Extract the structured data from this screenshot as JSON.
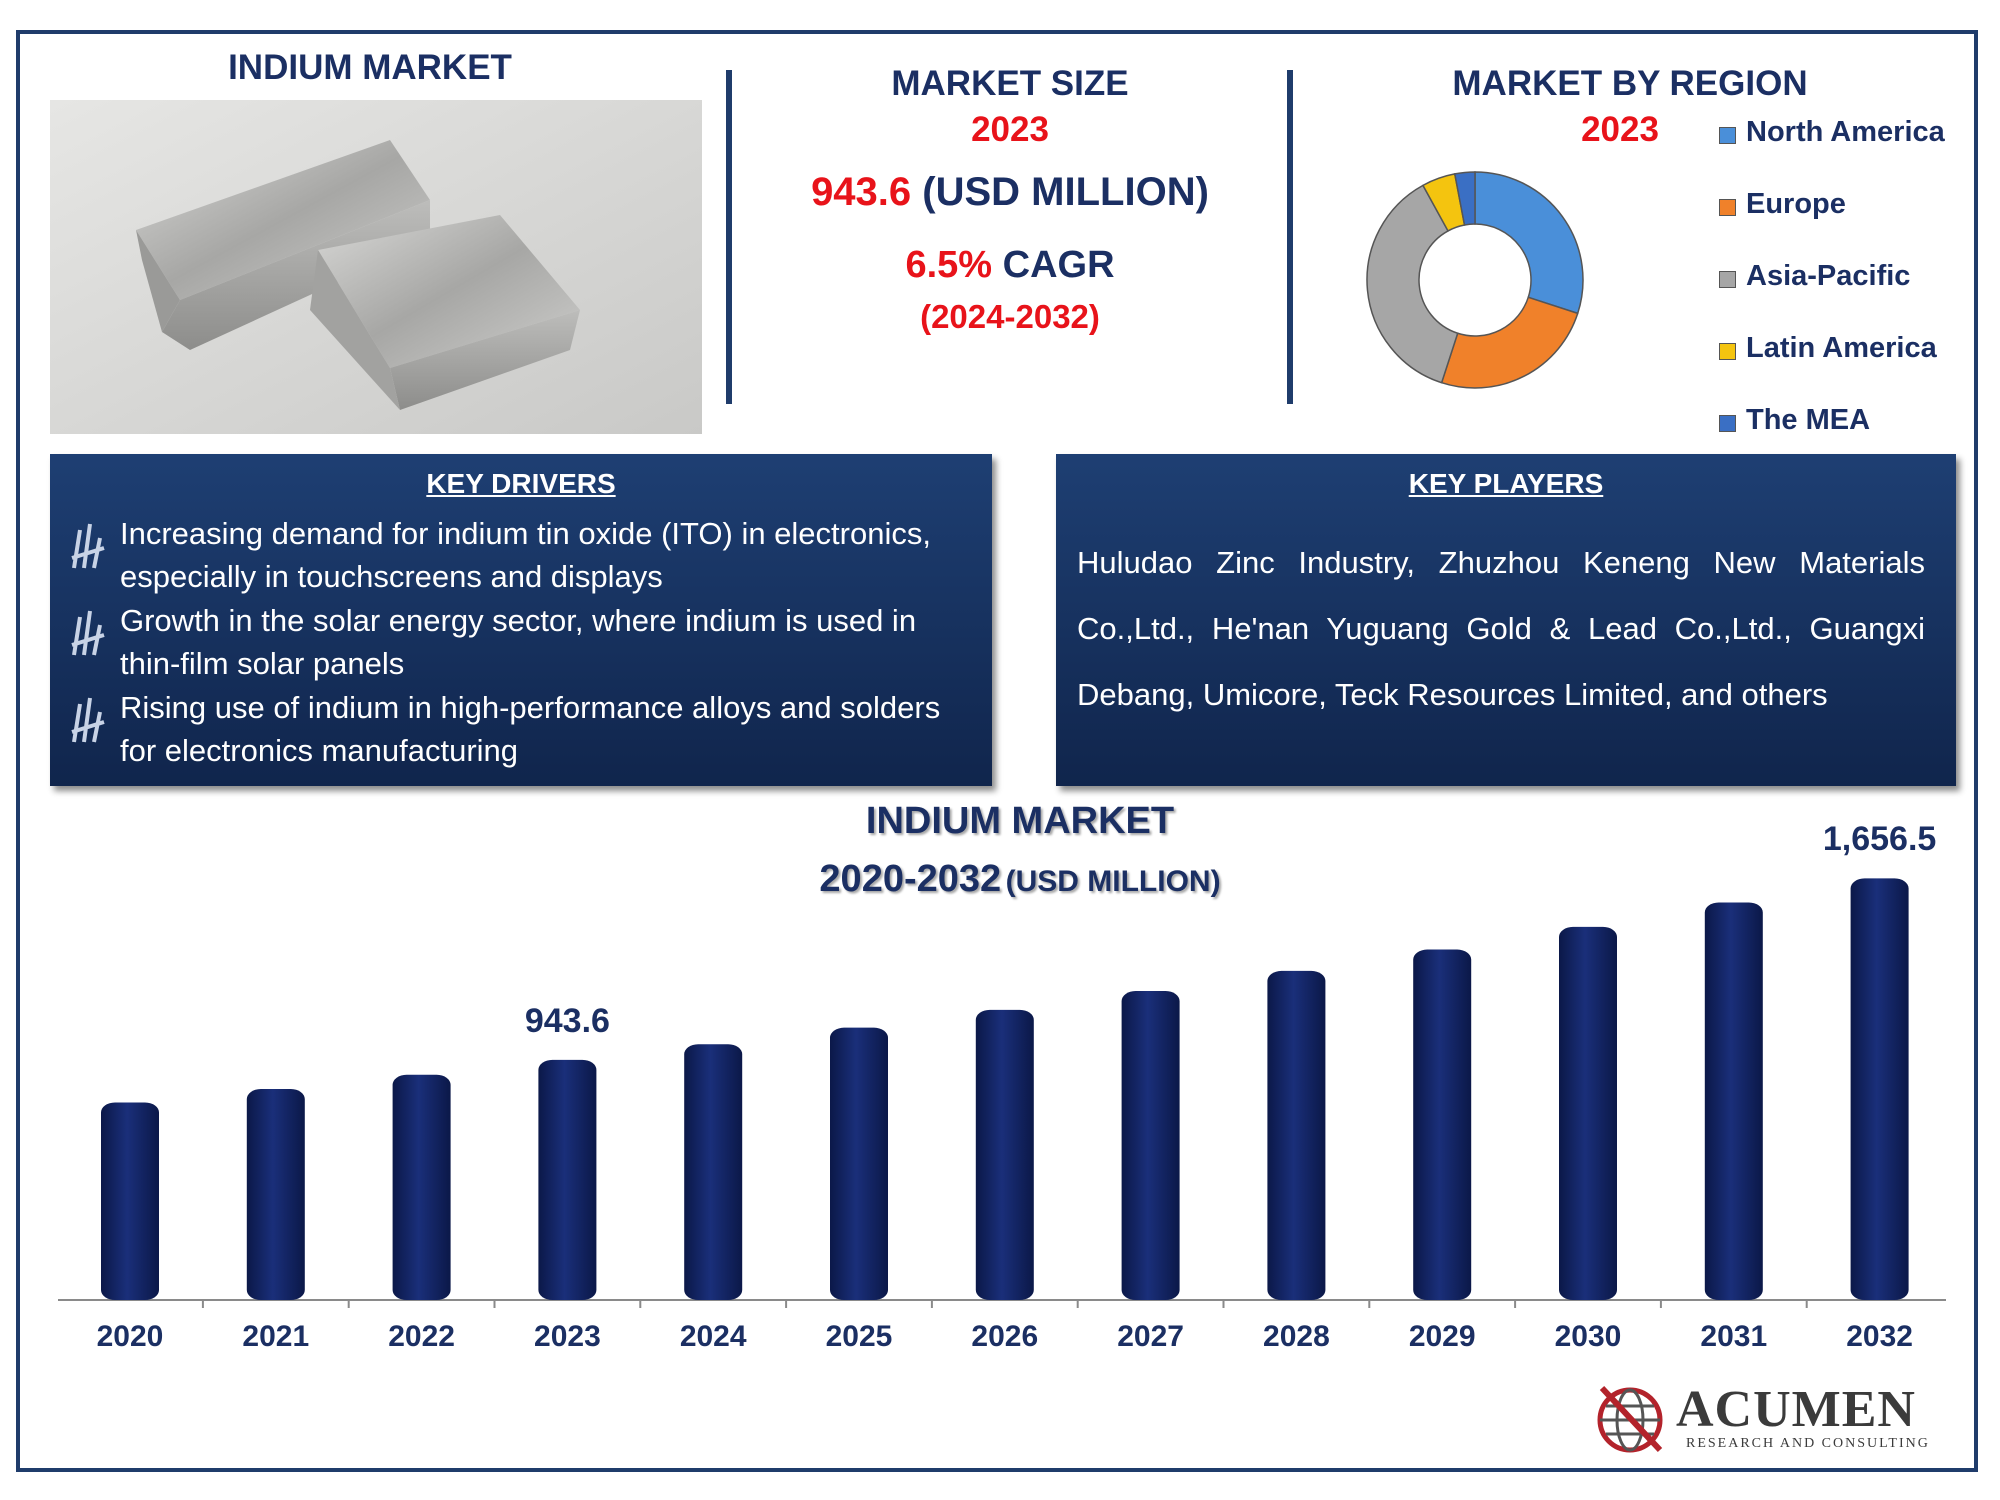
{
  "header": {
    "image_title": "INDIUM MARKET",
    "market_size_title": "MARKET SIZE",
    "market_size_year": "2023",
    "market_size_value": "943.6",
    "market_size_unit": "(USD MILLION)",
    "cagr_value": "6.5%",
    "cagr_label": "CAGR",
    "cagr_period": "(2024-2032)",
    "region_title": "MARKET BY REGION",
    "region_year": "2023"
  },
  "key_drivers": {
    "title": "KEY DRIVERS",
    "items": [
      "Increasing demand for indium tin oxide (ITO) in electronics, especially in touchscreens and displays",
      "Growth in the solar energy sector, where indium is used in thin-film solar panels",
      "Rising use of indium in high-performance alloys and solders for electronics manufacturing"
    ]
  },
  "key_players": {
    "title": "KEY PLAYERS",
    "text": "Huludao Zinc Industry, Zhuzhou Keneng New Materials Co.,Ltd., He'nan Yuguang Gold & Lead Co.,Ltd., Guangxi Debang, Umicore, Teck Resources Limited, and others"
  },
  "logo": {
    "name": "ACUMEN",
    "tagline": "RESEARCH AND CONSULTING"
  },
  "chart_data": [
    {
      "type": "pie",
      "title": "",
      "donut": true,
      "categories": [
        "North America",
        "Europe",
        "Asia-Pacific",
        "Latin America",
        "The MEA"
      ],
      "values": [
        30,
        25,
        37,
        5,
        3
      ],
      "colors": [
        "#4a8fd9",
        "#f0812a",
        "#a6a6a6",
        "#f4c40f",
        "#3a6fc4"
      ],
      "legend": "right"
    },
    {
      "type": "bar",
      "title": "INDIUM MARKET",
      "subtitle_years": "2020-2032",
      "subtitle_unit": "(USD MILLION)",
      "categories": [
        "2020",
        "2021",
        "2022",
        "2023",
        "2024",
        "2025",
        "2026",
        "2027",
        "2028",
        "2029",
        "2030",
        "2031",
        "2032"
      ],
      "values": [
        776,
        829,
        885,
        943.6,
        1005,
        1070,
        1140,
        1214,
        1293,
        1377,
        1466,
        1562,
        1656.5
      ],
      "data_labels": {
        "3": "943.6",
        "12": "1,656.5"
      },
      "color": "#0f1f5c",
      "ylim": [
        0,
        1800
      ],
      "grid": false
    }
  ]
}
